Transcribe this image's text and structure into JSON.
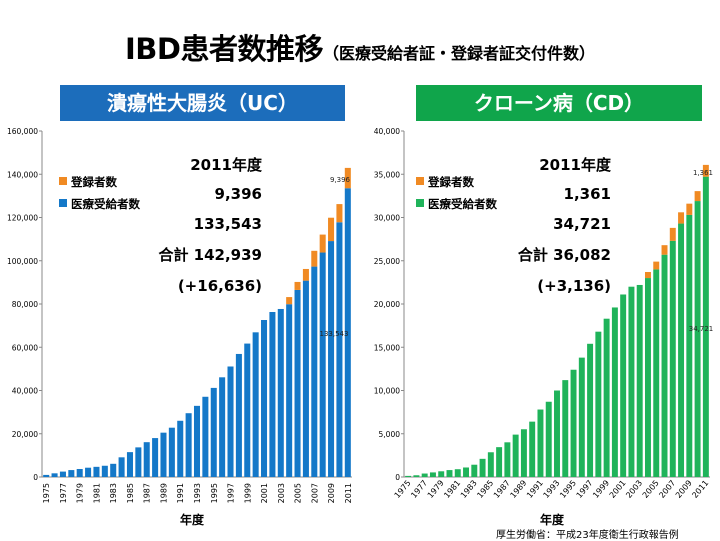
{
  "title": {
    "main": "IBD患者数推移",
    "sub": "（医療受給者証・登録者証交付件数）"
  },
  "banner_uc": "潰瘍性大腸炎（UC）",
  "banner_cd": "クローン病（CD）",
  "source": "厚生労働省：平成23年度衛生行政報告例",
  "colors": {
    "registered": "#f08a23",
    "certified_uc": "#1478c8",
    "certified_cd": "#1fb35a",
    "banner_uc": "#1c6dbb",
    "banner_cd": "#10a54b"
  },
  "chart_data": [
    {
      "type": "bar",
      "stacked": true,
      "xlabel": "年度",
      "ylabel": "",
      "ylim": [
        0,
        160000
      ],
      "yticks": [
        "0",
        "20,000",
        "40,000",
        "60,000",
        "80,000",
        "100,000",
        "120,000",
        "140,000",
        "160,000"
      ],
      "xticks": [
        "1975",
        "1977",
        "1979",
        "1981",
        "1983",
        "1985",
        "1987",
        "1989",
        "1991",
        "1993",
        "1995",
        "1997",
        "1999",
        "2001",
        "2003",
        "2005",
        "2007",
        "2009",
        "2011"
      ],
      "grid": false,
      "legend": "top-left",
      "categories": [
        "1975",
        "1976",
        "1977",
        "1978",
        "1979",
        "1980",
        "1981",
        "1982",
        "1983",
        "1984",
        "1985",
        "1986",
        "1987",
        "1988",
        "1989",
        "1990",
        "1991",
        "1992",
        "1993",
        "1994",
        "1995",
        "1996",
        "1997",
        "1998",
        "1999",
        "2000",
        "2001",
        "2002",
        "2003",
        "2004",
        "2005",
        "2006",
        "2007",
        "2008",
        "2009",
        "2010",
        "2011"
      ],
      "series": [
        {
          "name": "医療受給者数",
          "values": [
            965,
            1700,
            2500,
            3200,
            3700,
            4300,
            4700,
            5200,
            6100,
            9100,
            11500,
            13700,
            16100,
            18000,
            20500,
            22800,
            26000,
            29500,
            32900,
            37100,
            41200,
            46100,
            51100,
            56900,
            61700,
            66900,
            72600,
            76300,
            77700,
            79900,
            86500,
            90800,
            97300,
            103800,
            109100,
            117800,
            133543
          ]
        },
        {
          "name": "登録者数",
          "values": [
            0,
            0,
            0,
            0,
            0,
            0,
            0,
            0,
            0,
            0,
            0,
            0,
            0,
            0,
            0,
            0,
            0,
            0,
            0,
            0,
            0,
            0,
            0,
            0,
            0,
            0,
            0,
            0,
            0,
            3300,
            3700,
            5400,
            7300,
            8300,
            10800,
            8400,
            9396
          ]
        }
      ],
      "annotations": {
        "heading": "2011年度",
        "registered": "9,396",
        "certified": "133,543",
        "total_label": "合計",
        "total": "142,939",
        "change": "(+16,636)",
        "bar_label_top": "9,396",
        "bar_label_mid": "133,543"
      }
    },
    {
      "type": "bar",
      "stacked": true,
      "xlabel": "年度",
      "ylabel": "",
      "ylim": [
        0,
        40000
      ],
      "yticks": [
        "0",
        "5,000",
        "10,000",
        "15,000",
        "20,000",
        "25,000",
        "30,000",
        "35,000",
        "40,000"
      ],
      "xticks": [
        "1975",
        "1977",
        "1979",
        "1981",
        "1983",
        "1985",
        "1987",
        "1989",
        "1991",
        "1993",
        "1995",
        "1997",
        "1999",
        "2001",
        "2003",
        "2005",
        "2007",
        "2009",
        "2011"
      ],
      "grid": false,
      "legend": "top-left",
      "categories": [
        "1975",
        "1976",
        "1977",
        "1978",
        "1979",
        "1980",
        "1981",
        "1982",
        "1983",
        "1984",
        "1985",
        "1986",
        "1987",
        "1988",
        "1989",
        "1990",
        "1991",
        "1992",
        "1993",
        "1994",
        "1995",
        "1996",
        "1997",
        "1998",
        "1999",
        "2000",
        "2001",
        "2002",
        "2003",
        "2004",
        "2005",
        "2006",
        "2007",
        "2008",
        "2009",
        "2010",
        "2011"
      ],
      "series": [
        {
          "name": "医療受給者数",
          "values": [
            128,
            200,
            400,
            530,
            660,
            800,
            900,
            1100,
            1420,
            2100,
            2860,
            3450,
            4010,
            4900,
            5520,
            6400,
            7800,
            8700,
            10000,
            11200,
            12400,
            13800,
            15400,
            16800,
            18300,
            19600,
            21100,
            22000,
            22200,
            23000,
            24000,
            25700,
            27300,
            29300,
            30300,
            31900,
            34721
          ]
        },
        {
          "name": "登録者数",
          "values": [
            0,
            0,
            0,
            0,
            0,
            0,
            0,
            0,
            0,
            0,
            0,
            0,
            0,
            0,
            0,
            0,
            0,
            0,
            0,
            0,
            0,
            0,
            0,
            0,
            0,
            0,
            0,
            0,
            0,
            700,
            900,
            1100,
            1500,
            1300,
            1300,
            1150,
            1361
          ]
        }
      ],
      "annotations": {
        "heading": "2011年度",
        "registered": "1,361",
        "certified": "34,721",
        "total_label": "合計",
        "total": "36,082",
        "change": "(+3,136)",
        "bar_label_top": "1,361",
        "bar_label_mid": "34,721"
      }
    }
  ]
}
